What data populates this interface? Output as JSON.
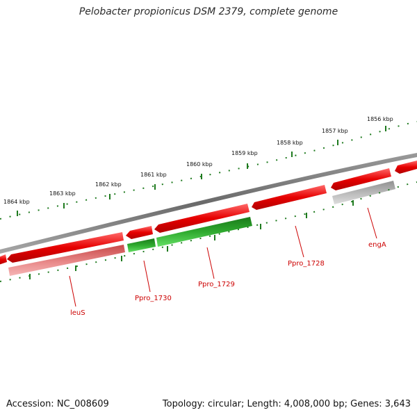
{
  "title": "Pelobacter propionicus DSM 2379, complete genome",
  "footer": {
    "accession": "Accession: NC_008609",
    "summary": "Topology: circular; Length: 4,008,000 bp; Genes: 3,643"
  },
  "scale_labels": [
    "1856 kbp",
    "1857 kbp",
    "1858 kbp",
    "1859 kbp",
    "1860 kbp",
    "1861 kbp",
    "1862 kbp",
    "1863 kbp",
    "1864 kbp"
  ],
  "gene_labels": [
    "leuS",
    "Ppro_1730",
    "Ppro_1729",
    "Ppro_1728",
    "engA"
  ],
  "colors": {
    "background": "#ffffff",
    "ruler_tick": "#1e7a1e",
    "backbone": "#808080",
    "forward_gene": "#e60000",
    "forward_gene_light": "#ff6a6a",
    "reverse_gene": "#b00000",
    "reverse_gene_light": "#f08a8a",
    "green_gene": "#1a8a1a",
    "green_gene_light": "#55d455",
    "grey_gene": "#b0b0b0",
    "grey_gene_light": "#d8d8d8",
    "label_line": "#cc0000",
    "label_text": "#cc0000"
  }
}
